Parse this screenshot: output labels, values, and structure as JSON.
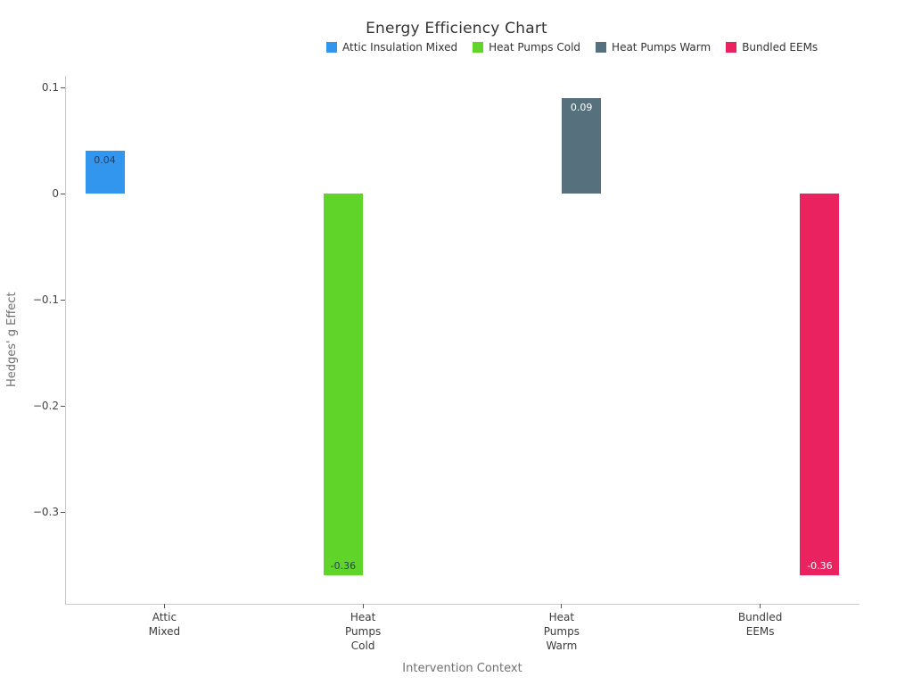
{
  "title": "Energy Efficiency Chart",
  "legend": {
    "items": [
      {
        "label": "Attic Insulation Mixed",
        "color": "#3295ee"
      },
      {
        "label": "Heat Pumps Cold",
        "color": "#61d42a"
      },
      {
        "label": "Heat Pumps Warm",
        "color": "#56707e"
      },
      {
        "label": "Bundled EEMs",
        "color": "#ea2360"
      }
    ]
  },
  "chart_data": {
    "type": "bar",
    "title": "Energy Efficiency Chart",
    "xlabel": "Intervention Context",
    "ylabel": "Hedges' g Effect",
    "categories": [
      "Attic Mixed",
      "Heat Pumps Cold",
      "Heat Pumps Warm",
      "Bundled EEMs"
    ],
    "category_tick_lines": [
      [
        "Attic",
        "Mixed"
      ],
      [
        "Heat",
        "Pumps",
        "Cold"
      ],
      [
        "Heat",
        "Pumps",
        "Warm"
      ],
      [
        "Bundled",
        "EEMs"
      ]
    ],
    "series": [
      {
        "name": "Attic Insulation Mixed",
        "category": "Attic Mixed",
        "category_index": 0,
        "slot": 0,
        "value": 0.04,
        "bar_label": "0.04",
        "color": "#3295ee",
        "bar_label_color": "#2a3f5f"
      },
      {
        "name": "Heat Pumps Cold",
        "category": "Heat Pumps Cold",
        "category_index": 1,
        "slot": 1,
        "value": -0.36,
        "bar_label": "-0.36",
        "color": "#61d42a",
        "bar_label_color": "#2a3f5f"
      },
      {
        "name": "Heat Pumps Warm",
        "category": "Heat Pumps Warm",
        "category_index": 2,
        "slot": 2,
        "value": 0.09,
        "bar_label": "0.09",
        "color": "#56707e",
        "bar_label_color": "#ffffff"
      },
      {
        "name": "Bundled EEMs",
        "category": "Bundled EEMs",
        "category_index": 3,
        "slot": 3,
        "value": -0.36,
        "bar_label": "-0.36",
        "color": "#ea2360",
        "bar_label_color": "#ffffff"
      }
    ],
    "y_ticks": [
      {
        "value": 0.1,
        "label": "0.1"
      },
      {
        "value": 0,
        "label": "0"
      },
      {
        "value": -0.1,
        "label": "−0.1"
      },
      {
        "value": -0.2,
        "label": "−0.2"
      },
      {
        "value": -0.3,
        "label": "−0.3"
      }
    ],
    "ylim": [
      -0.387,
      0.111
    ],
    "grid": false,
    "legend_position": "top-horizontal"
  }
}
